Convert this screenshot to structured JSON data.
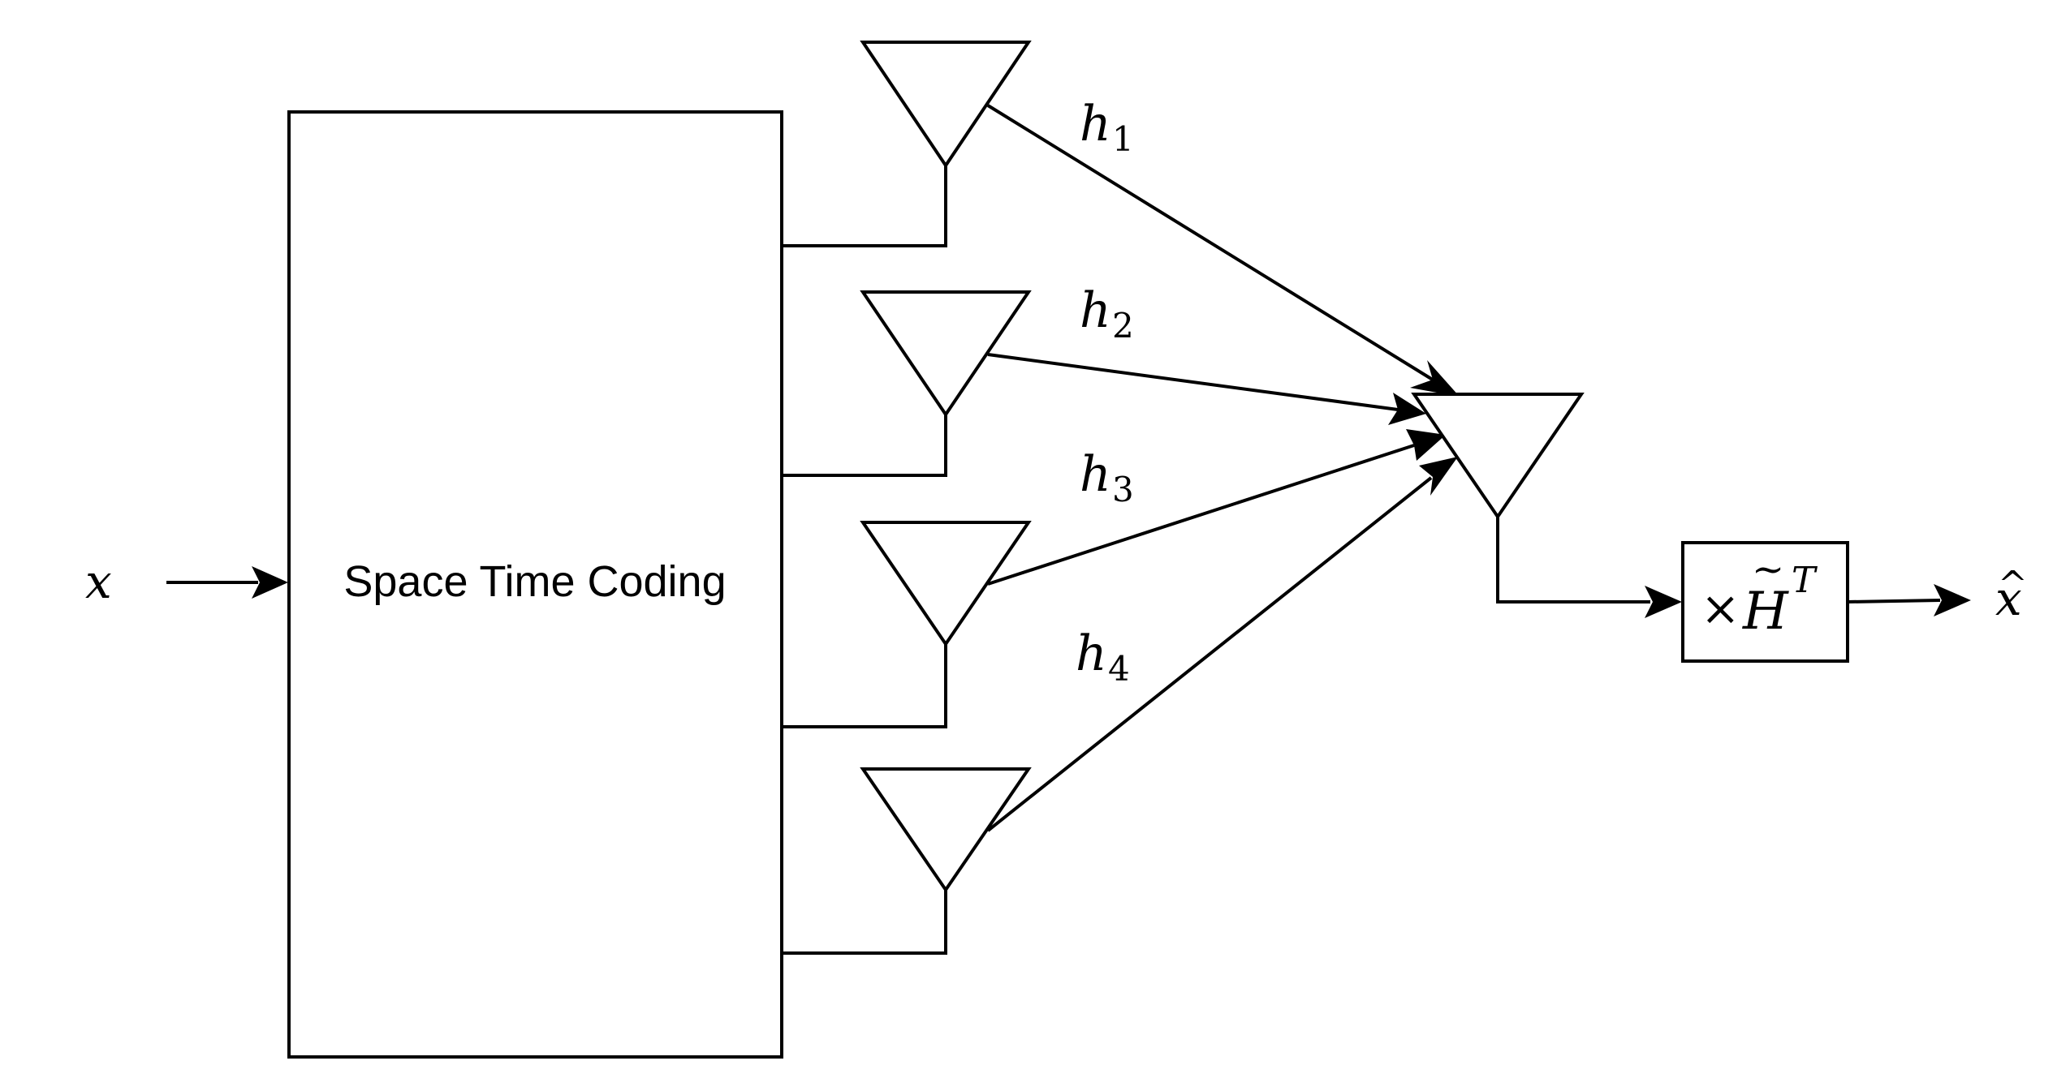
{
  "input_label": "x",
  "encoder_label": "Space Time Coding",
  "channels": [
    {
      "symbol": "h",
      "subscript": "1"
    },
    {
      "symbol": "h",
      "subscript": "2"
    },
    {
      "symbol": "h",
      "subscript": "3"
    },
    {
      "symbol": "h",
      "subscript": "4"
    }
  ],
  "combiner": {
    "operator": "×",
    "symbol": "H",
    "accent": "~",
    "superscript": "T"
  },
  "output": {
    "symbol": "x",
    "accent": "^"
  }
}
